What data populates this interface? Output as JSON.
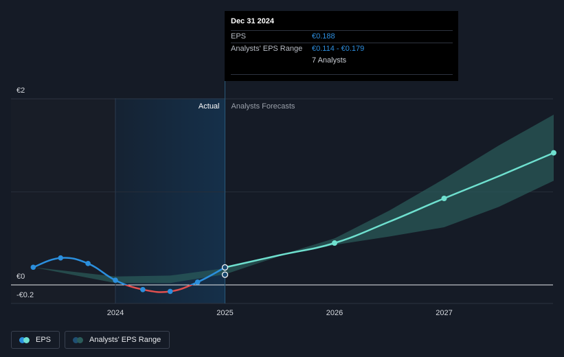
{
  "chart_data": {
    "type": "line",
    "y_ticks": [
      {
        "value": 2,
        "label": "€2"
      },
      {
        "value": 0,
        "label": "€0"
      },
      {
        "value": -0.2,
        "label": "-€0.2"
      }
    ],
    "ylim": [
      -0.2,
      2
    ],
    "xlim": [
      2023.2,
      2028.0
    ],
    "x_ticks": [
      {
        "value": 2024,
        "label": "2024"
      },
      {
        "value": 2025,
        "label": "2025"
      },
      {
        "value": 2026,
        "label": "2026"
      },
      {
        "value": 2027,
        "label": "2027"
      }
    ],
    "sections": {
      "actual_label": "Actual",
      "forecast_label": "Analysts Forecasts"
    },
    "actual_start": 2024.0,
    "forecast_start": 2025.0,
    "series": [
      {
        "name": "EPS",
        "kind": "actual",
        "points": [
          [
            2023.25,
            0.19
          ],
          [
            2023.5,
            0.29
          ],
          [
            2023.75,
            0.23
          ],
          [
            2024.0,
            0.05
          ],
          [
            2024.25,
            -0.05
          ],
          [
            2024.5,
            -0.07
          ],
          [
            2024.75,
            0.03
          ],
          [
            2025.0,
            0.188
          ]
        ],
        "markers": [
          [
            2023.25,
            0.19
          ],
          [
            2023.5,
            0.29
          ],
          [
            2023.75,
            0.23
          ],
          [
            2024.0,
            0.05
          ],
          [
            2024.25,
            -0.05
          ],
          [
            2024.5,
            -0.07
          ],
          [
            2024.75,
            0.03
          ],
          [
            2025.0,
            0.188
          ],
          [
            2025.0,
            0.11
          ]
        ]
      },
      {
        "name": "EPS",
        "kind": "forecast",
        "points": [
          [
            2025.0,
            0.188
          ],
          [
            2025.5,
            0.32
          ],
          [
            2026.0,
            0.45
          ],
          [
            2026.5,
            0.68
          ],
          [
            2027.0,
            0.93
          ],
          [
            2027.5,
            1.17
          ],
          [
            2028.0,
            1.42
          ]
        ],
        "markers": [
          [
            2026.0,
            0.45
          ],
          [
            2027.0,
            0.93
          ],
          [
            2028.0,
            1.42
          ]
        ]
      },
      {
        "name": "Analysts' EPS Range",
        "kind": "range",
        "upper": [
          [
            2023.25,
            0.19
          ],
          [
            2024.0,
            0.09
          ],
          [
            2024.5,
            0.1
          ],
          [
            2025.0,
            0.179
          ],
          [
            2025.5,
            0.32
          ],
          [
            2026.0,
            0.5
          ],
          [
            2026.5,
            0.8
          ],
          [
            2027.0,
            1.14
          ],
          [
            2027.5,
            1.5
          ],
          [
            2028.0,
            1.83
          ]
        ],
        "lower": [
          [
            2023.25,
            0.19
          ],
          [
            2024.0,
            0.02
          ],
          [
            2024.5,
            0.02
          ],
          [
            2025.0,
            0.114
          ],
          [
            2025.5,
            0.31
          ],
          [
            2026.0,
            0.43
          ],
          [
            2026.5,
            0.52
          ],
          [
            2027.0,
            0.62
          ],
          [
            2027.5,
            0.84
          ],
          [
            2028.0,
            1.12
          ]
        ]
      }
    ],
    "colors": {
      "eps_actual": "#2b8fdd",
      "eps_negative": "#e0504f",
      "eps_forecast": "#6fe0cf",
      "range_fill": "#2b5c5a",
      "past_highlight": "#15304a"
    }
  },
  "tooltip": {
    "date": "Dec 31 2024",
    "rows": [
      {
        "key": "EPS",
        "value": "€0.188"
      },
      {
        "key": "Analysts' EPS Range",
        "value": "€0.114 - €0.179"
      },
      {
        "key": "",
        "value": "7 Analysts"
      }
    ]
  },
  "legend": {
    "eps_label": "EPS",
    "range_label": "Analysts' EPS Range"
  }
}
